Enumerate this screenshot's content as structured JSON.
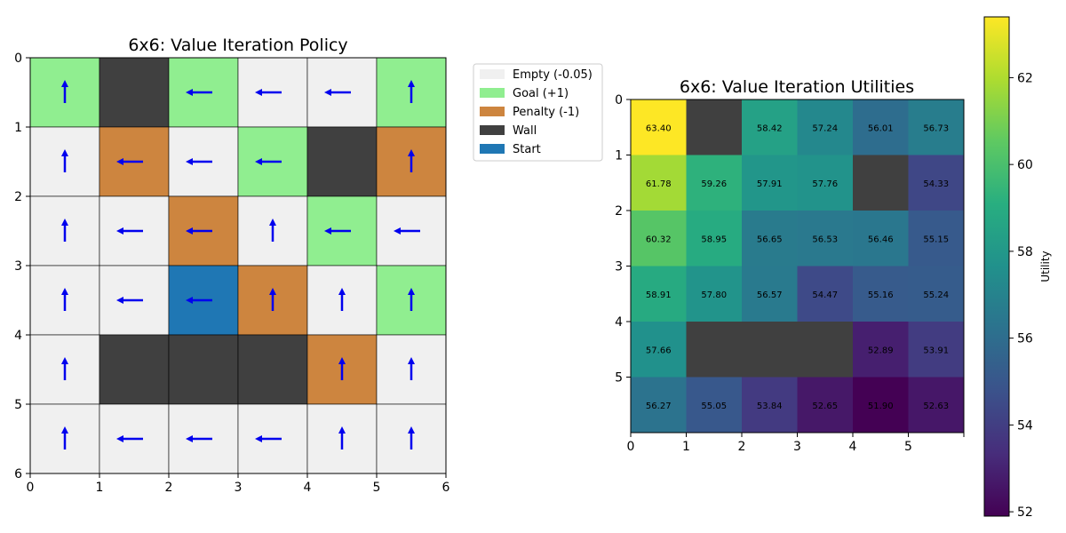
{
  "colors": {
    "empty": "#f0f0f0",
    "goal": "#90ee90",
    "penalty": "#cd853f",
    "wall": "#404040",
    "start": "#1f77b4",
    "arrow": "#0000ee"
  },
  "chart_data": [
    {
      "type": "heatmap",
      "title": "6x6: Value Iteration Policy",
      "xlim": [
        0,
        6
      ],
      "ylim": [
        6,
        0
      ],
      "xticks": [
        "0",
        "1",
        "2",
        "3",
        "4",
        "5",
        "6"
      ],
      "yticks": [
        "0",
        "1",
        "2",
        "3",
        "4",
        "5",
        "6"
      ],
      "grid": [
        [
          "goal",
          "wall",
          "goal",
          "empty",
          "empty",
          "goal"
        ],
        [
          "empty",
          "penalty",
          "empty",
          "goal",
          "wall",
          "penalty"
        ],
        [
          "empty",
          "empty",
          "penalty",
          "empty",
          "goal",
          "empty"
        ],
        [
          "empty",
          "empty",
          "start",
          "penalty",
          "empty",
          "goal"
        ],
        [
          "empty",
          "wall",
          "wall",
          "wall",
          "penalty",
          "empty"
        ],
        [
          "empty",
          "empty",
          "empty",
          "empty",
          "empty",
          "empty"
        ]
      ],
      "policy": [
        [
          "up",
          "",
          "left",
          "left",
          "left",
          "up"
        ],
        [
          "up",
          "left",
          "left",
          "left",
          "",
          "up"
        ],
        [
          "up",
          "left",
          "left",
          "up",
          "left",
          "left"
        ],
        [
          "up",
          "left",
          "left",
          "up",
          "up",
          "up"
        ],
        [
          "up",
          "",
          "",
          "",
          "up",
          "up"
        ],
        [
          "up",
          "left",
          "left",
          "left",
          "up",
          "up"
        ]
      ],
      "legend": {
        "placement": "outside-top-right",
        "entries": [
          {
            "label": "Empty (-0.05)",
            "key": "empty"
          },
          {
            "label": "Goal (+1)",
            "key": "goal"
          },
          {
            "label": "Penalty (-1)",
            "key": "penalty"
          },
          {
            "label": "Wall",
            "key": "wall"
          },
          {
            "label": "Start",
            "key": "start"
          }
        ]
      }
    },
    {
      "type": "heatmap",
      "title": "6x6: Value Iteration Utilities",
      "xticks": [
        "0",
        "1",
        "2",
        "3",
        "4",
        "5"
      ],
      "yticks": [
        "0",
        "1",
        "2",
        "3",
        "4",
        "5"
      ],
      "colormap": "viridis",
      "values": [
        [
          63.4,
          null,
          58.42,
          57.24,
          56.01,
          56.73
        ],
        [
          61.78,
          59.26,
          57.91,
          57.76,
          null,
          54.33
        ],
        [
          60.32,
          58.95,
          56.65,
          56.53,
          56.46,
          55.15
        ],
        [
          58.91,
          57.8,
          56.57,
          54.47,
          55.16,
          55.24
        ],
        [
          57.66,
          null,
          null,
          null,
          52.89,
          53.91
        ],
        [
          56.27,
          55.05,
          53.84,
          52.65,
          51.9,
          52.63
        ]
      ],
      "labels": [
        [
          "63.40",
          "",
          "58.42",
          "57.24",
          "56.01",
          "56.73"
        ],
        [
          "61.78",
          "59.26",
          "57.91",
          "57.76",
          "",
          "54.33"
        ],
        [
          "60.32",
          "58.95",
          "56.65",
          "56.53",
          "56.46",
          "55.15"
        ],
        [
          "58.91",
          "57.80",
          "56.57",
          "54.47",
          "55.16",
          "55.24"
        ],
        [
          "57.66",
          "",
          "",
          "",
          "52.89",
          "53.91"
        ],
        [
          "56.27",
          "55.05",
          "53.84",
          "52.65",
          "51.90",
          "52.63"
        ]
      ],
      "colorbar": {
        "label": "Utility",
        "range": [
          51.9,
          63.4
        ],
        "ticks": [
          "52",
          "54",
          "56",
          "58",
          "60",
          "62"
        ]
      }
    }
  ]
}
